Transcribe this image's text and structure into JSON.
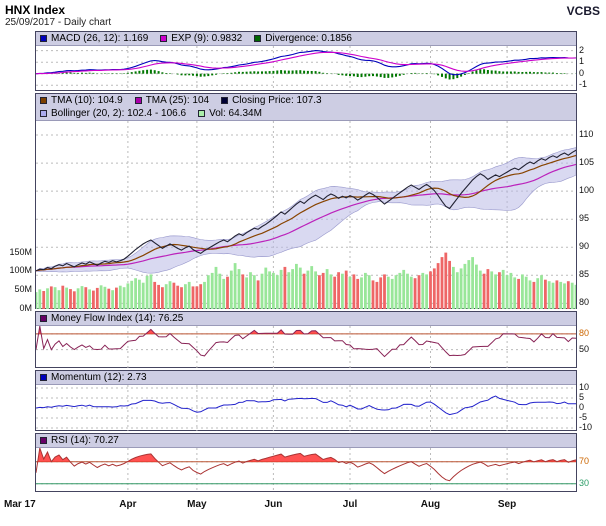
{
  "header": {
    "title": "HNX Index",
    "subtitle": "25/09/2017 - Daily chart",
    "brand": "VCBS"
  },
  "legends": {
    "macd": {
      "items": [
        {
          "swatch": "#0000bb",
          "text": "MACD (26, 12): 1.169"
        },
        {
          "swatch": "#cc00cc",
          "text": "EXP (9): 0.9832"
        },
        {
          "swatch": "#006600",
          "text": "Divergence: 0.1856"
        }
      ]
    },
    "price_row1": {
      "items": [
        {
          "swatch": "#7b3f00",
          "text": "TMA (10): 104.9"
        },
        {
          "swatch": "#aa00aa",
          "text": "TMA (25): 104"
        },
        {
          "swatch": "#000033",
          "text": "Closing Price: 107.3"
        }
      ]
    },
    "price_row2": {
      "items": [
        {
          "swatch": "#aaaaee",
          "text": "Bollinger (20, 2): 102.4 - 106.6"
        },
        {
          "swatch": "#aaeeaa",
          "text": "Vol: 64.34M"
        }
      ]
    },
    "mfi": {
      "items": [
        {
          "swatch": "#660066",
          "text": "Money Flow Index (14): 76.25"
        }
      ]
    },
    "momentum": {
      "items": [
        {
          "swatch": "#0000bb",
          "text": "Momentum (12): 2.73"
        }
      ]
    },
    "rsi": {
      "items": [
        {
          "swatch": "#660066",
          "text": "RSI (14): 70.27"
        }
      ]
    }
  },
  "chart_data": {
    "type": "line",
    "title": "HNX Index - Daily chart - 25/09/2017",
    "x_labels": [
      "Mar 17",
      "Apr",
      "May",
      "Jun",
      "Jul",
      "Aug",
      "Sep"
    ],
    "month_start_indices": [
      0,
      24,
      42,
      62,
      82,
      103,
      123
    ],
    "close": [
      85.8,
      86.1,
      86.0,
      86.4,
      86.2,
      86.6,
      86.9,
      86.7,
      87.1,
      86.8,
      86.5,
      86.9,
      87.2,
      87.0,
      87.4,
      87.1,
      86.8,
      87.2,
      87.5,
      87.3,
      87.6,
      87.4,
      87.6,
      87.9,
      88.4,
      89.0,
      89.6,
      90.1,
      90.6,
      91.0,
      91.3,
      90.8,
      90.3,
      89.8,
      90.2,
      90.6,
      90.2,
      89.8,
      89.5,
      89.9,
      90.2,
      89.6,
      89.2,
      88.9,
      89.4,
      89.8,
      90.2,
      90.6,
      91.0,
      91.3,
      91.0,
      91.5,
      92.0,
      92.4,
      92.1,
      92.6,
      93.0,
      93.4,
      93.2,
      93.7,
      94.1,
      94.6,
      95.1,
      95.7,
      96.3,
      95.9,
      96.5,
      97.1,
      97.7,
      98.2,
      97.8,
      98.4,
      98.9,
      99.3,
      98.9,
      98.5,
      99.1,
      99.5,
      99.2,
      98.7,
      99.1,
      98.8,
      99.2,
      98.9,
      98.4,
      98.8,
      99.3,
      99.7,
      99.4,
      98.9,
      98.3,
      97.7,
      98.2,
      98.7,
      99.2,
      99.7,
      100.2,
      100.7,
      101.1,
      100.7,
      100.3,
      100.8,
      101.2,
      100.7,
      100.1,
      99.2,
      98.2,
      97.3,
      96.9,
      97.8,
      98.7,
      99.6,
      100.4,
      101.2,
      102.0,
      102.6,
      103.1,
      102.7,
      102.1,
      102.5,
      102.9,
      102.6,
      103.0,
      103.4,
      103.8,
      104.1,
      103.8,
      104.3,
      104.8,
      105.2,
      104.9,
      105.4,
      105.8,
      105.5,
      106.0,
      106.3,
      106.0,
      106.5,
      106.8,
      106.4,
      106.9,
      107.3
    ],
    "volume_millions": [
      45,
      52,
      48,
      55,
      60,
      58,
      50,
      62,
      57,
      53,
      47,
      55,
      61,
      58,
      52,
      49,
      56,
      63,
      59,
      54,
      50,
      57,
      62,
      58,
      68,
      75,
      82,
      78,
      70,
      88,
      92,
      72,
      64,
      58,
      66,
      74,
      70,
      62,
      58,
      66,
      72,
      60,
      60,
      66,
      72,
      90,
      96,
      112,
      94,
      80,
      86,
      102,
      122,
      106,
      92,
      84,
      98,
      90,
      76,
      94,
      110,
      100,
      96,
      90,
      104,
      112,
      98,
      106,
      120,
      110,
      94,
      102,
      114,
      100,
      90,
      96,
      106,
      92,
      86,
      98,
      94,
      102,
      86,
      92,
      80,
      84,
      96,
      90,
      76,
      72,
      84,
      92,
      86,
      80,
      90,
      96,
      104,
      94,
      86,
      82,
      90,
      96,
      92,
      100,
      108,
      122,
      138,
      150,
      128,
      112,
      98,
      108,
      120,
      130,
      138,
      118,
      102,
      94,
      106,
      100,
      92,
      98,
      104,
      90,
      96,
      84,
      80,
      92,
      86,
      76,
      72,
      82,
      90,
      78,
      74,
      70,
      76,
      72,
      68,
      74,
      70,
      64.34
    ],
    "indicators": {
      "macd": {
        "slow": 26,
        "fast": 12,
        "signal_period": 9,
        "current": 1.169,
        "signal_current": 0.9832,
        "divergence_current": 0.1856
      },
      "tma_fast": {
        "period": 10,
        "current": 104.9
      },
      "tma_slow": {
        "period": 25,
        "current": 104
      },
      "closing_price_current": 107.3,
      "bollinger": {
        "period": 20,
        "deviations": 2,
        "current_range": "102.4 - 106.6"
      },
      "volume_current": "64.34M",
      "mfi": {
        "period": 14,
        "current": 76.25,
        "overbought": 80
      },
      "momentum": {
        "period": 12,
        "current": 2.73
      },
      "rsi": {
        "period": 14,
        "current": 70.27,
        "overbought": 70,
        "oversold": 30
      }
    },
    "panels": {
      "macd": {
        "ylim": [
          -1.5,
          2.4
        ],
        "yticks": [
          2,
          1,
          0,
          -1
        ]
      },
      "price": {
        "ylim": [
          79,
          112.5
        ],
        "yticks": [
          110,
          105,
          100,
          95,
          90,
          85,
          80
        ],
        "volume_ticks": [
          150,
          100,
          50,
          0
        ],
        "volume_scale_max": 500
      },
      "mfi": {
        "ylim": [
          15,
          95
        ],
        "yticks": [
          {
            "v": 80,
            "c": "#cc6600"
          },
          {
            "v": 50,
            "c": "#111111"
          }
        ],
        "threshold": 80
      },
      "momentum": {
        "ylim": [
          -11.5,
          11.5
        ],
        "yticks": [
          10,
          5,
          0,
          -5,
          -10
        ]
      },
      "rsi": {
        "ylim": [
          15,
          95
        ],
        "yticks": [
          {
            "v": 70,
            "c": "#cc6600"
          },
          {
            "v": 30,
            "c": "#2a9d66"
          }
        ],
        "overbought": 70,
        "oversold": 30
      }
    },
    "colors": {
      "macd_line": "#0000bb",
      "signal_line": "#cc00cc",
      "histogram": "#007700",
      "close_line": "#222233",
      "tma_fast": "#884400",
      "tma_slow": "#bb22bb",
      "bollinger_fill": "#b9b9e6",
      "volume_up": "#99e699",
      "volume_down": "#ee6666",
      "mfi_line": "#882255",
      "momentum_line": "#2222cc",
      "rsi_line": "#aa3333",
      "overbought_fill": "#ff3333",
      "threshold_line": "#bb5533",
      "oversold_line": "#339966",
      "grid": "#bbbbbb"
    }
  }
}
